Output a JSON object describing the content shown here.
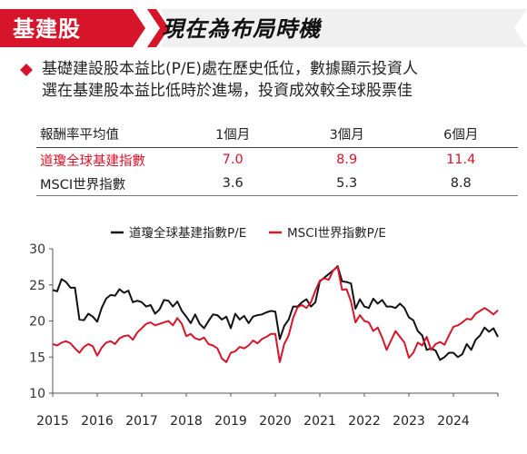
{
  "header": {
    "tag": "基建股",
    "title": "現在為布局時機"
  },
  "summary": {
    "line1": "基礎建設股本益比(P/E)處在歷史低位，數據顯示投資人",
    "line2": "選在基建股本益比低時於進場，投資成效較全球股票佳"
  },
  "table": {
    "headers": [
      "報酬率平均值",
      "1個月",
      "3個月",
      "6個月"
    ],
    "rows": [
      {
        "name": "道瓊全球基建指數",
        "values": [
          "7.0",
          "8.9",
          "11.4"
        ]
      },
      {
        "name": "MSCI世界指數",
        "values": [
          "3.6",
          "5.3",
          "8.8"
        ]
      }
    ]
  },
  "colors": {
    "accent": "#d7152a",
    "black_series": "#111111",
    "red_series": "#d7152a"
  },
  "chart_data": {
    "type": "line",
    "title": "",
    "xlabel": "",
    "ylabel": "",
    "ylim": [
      10,
      30
    ],
    "yticks": [
      "10",
      "15",
      "20",
      "25",
      "30"
    ],
    "xlim": [
      2015,
      2025
    ],
    "xtick_labels": [
      "2015",
      "2016",
      "2017",
      "2018",
      "2019",
      "2020",
      "2021",
      "2022",
      "2023",
      "2024"
    ],
    "legend_position": "top-center",
    "grid": false,
    "series": [
      {
        "name": "道瓊全球基建指數P/E",
        "color": "#111111",
        "x": [
          2015.0,
          2015.1,
          2015.2,
          2015.3,
          2015.4,
          2015.5,
          2015.6,
          2015.7,
          2015.8,
          2015.9,
          2016.0,
          2016.1,
          2016.2,
          2016.3,
          2016.4,
          2016.5,
          2016.6,
          2016.7,
          2016.8,
          2016.9,
          2017.0,
          2017.1,
          2017.2,
          2017.3,
          2017.4,
          2017.5,
          2017.6,
          2017.7,
          2017.8,
          2017.9,
          2018.0,
          2018.1,
          2018.2,
          2018.3,
          2018.4,
          2018.5,
          2018.6,
          2018.7,
          2018.8,
          2018.9,
          2019.0,
          2019.1,
          2019.2,
          2019.3,
          2019.4,
          2019.5,
          2019.6,
          2019.7,
          2019.8,
          2019.9,
          2020.0,
          2020.1,
          2020.2,
          2020.3,
          2020.4,
          2020.5,
          2020.6,
          2020.7,
          2020.8,
          2020.9,
          2021.0,
          2021.1,
          2021.2,
          2021.3,
          2021.4,
          2021.5,
          2021.6,
          2021.7,
          2021.8,
          2021.9,
          2022.0,
          2022.1,
          2022.2,
          2022.3,
          2022.4,
          2022.5,
          2022.6,
          2022.7,
          2022.8,
          2022.9,
          2023.0,
          2023.1,
          2023.2,
          2023.3,
          2023.4,
          2023.5,
          2023.6,
          2023.7,
          2023.8,
          2023.9,
          2024.0,
          2024.1,
          2024.2,
          2024.3,
          2024.4,
          2024.5,
          2024.6,
          2024.7,
          2024.8,
          2024.9,
          2025.0
        ],
        "values": [
          24.3,
          24.1,
          25.8,
          25.4,
          24.6,
          24.6,
          20.2,
          20.1,
          21.0,
          20.6,
          19.9,
          21.8,
          23.1,
          23.6,
          23.5,
          24.4,
          23.9,
          24.2,
          22.6,
          22.8,
          22.6,
          22.0,
          22.2,
          21.0,
          21.6,
          22.9,
          22.8,
          22.0,
          22.7,
          21.4,
          20.6,
          19.7,
          20.9,
          19.6,
          19.0,
          20.0,
          20.9,
          20.8,
          20.2,
          20.6,
          19.0,
          21.0,
          20.2,
          20.7,
          19.7,
          20.6,
          20.8,
          20.9,
          21.2,
          21.4,
          21.3,
          17.5,
          19.3,
          20.2,
          22.0,
          22.0,
          22.6,
          23.0,
          22.0,
          22.6,
          25.5,
          26.0,
          26.5,
          27.0,
          27.6,
          25.5,
          25.4,
          25.2,
          21.7,
          23.0,
          22.0,
          21.8,
          23.1,
          22.4,
          22.9,
          22.0,
          22.0,
          21.8,
          22.4,
          21.8,
          20.5,
          20.1,
          18.6,
          18.0,
          16.0,
          16.2,
          15.9,
          14.6,
          15.0,
          15.6,
          15.6,
          15.0,
          15.4,
          16.8,
          16.0,
          17.4,
          18.0,
          19.1,
          18.5,
          19.0,
          17.8
        ]
      },
      {
        "name": "MSCI世界指數P/E",
        "color": "#d7152a",
        "x": [
          2015.0,
          2015.1,
          2015.2,
          2015.3,
          2015.4,
          2015.5,
          2015.6,
          2015.7,
          2015.8,
          2015.9,
          2016.0,
          2016.1,
          2016.2,
          2016.3,
          2016.4,
          2016.5,
          2016.6,
          2016.7,
          2016.8,
          2016.9,
          2017.0,
          2017.1,
          2017.2,
          2017.3,
          2017.4,
          2017.5,
          2017.6,
          2017.7,
          2017.8,
          2017.9,
          2018.0,
          2018.1,
          2018.2,
          2018.3,
          2018.4,
          2018.5,
          2018.6,
          2018.7,
          2018.8,
          2018.9,
          2019.0,
          2019.1,
          2019.2,
          2019.3,
          2019.4,
          2019.5,
          2019.6,
          2019.7,
          2019.8,
          2019.9,
          2020.0,
          2020.1,
          2020.2,
          2020.3,
          2020.4,
          2020.5,
          2020.6,
          2020.7,
          2020.8,
          2020.9,
          2021.0,
          2021.1,
          2021.2,
          2021.3,
          2021.4,
          2021.5,
          2021.6,
          2021.7,
          2021.8,
          2021.9,
          2022.0,
          2022.1,
          2022.2,
          2022.3,
          2022.4,
          2022.5,
          2022.6,
          2022.7,
          2022.8,
          2022.9,
          2023.0,
          2023.1,
          2023.2,
          2023.3,
          2023.4,
          2023.5,
          2023.6,
          2023.7,
          2023.8,
          2023.9,
          2024.0,
          2024.1,
          2024.2,
          2024.3,
          2024.4,
          2024.5,
          2024.6,
          2024.7,
          2024.8,
          2024.9,
          2025.0
        ],
        "values": [
          16.8,
          16.6,
          17.0,
          17.2,
          16.9,
          16.2,
          15.6,
          16.4,
          16.8,
          16.5,
          15.2,
          16.3,
          17.0,
          17.2,
          16.8,
          17.6,
          17.9,
          18.0,
          17.4,
          18.4,
          19.0,
          19.6,
          19.8,
          19.4,
          19.6,
          19.8,
          20.0,
          19.4,
          20.4,
          19.6,
          17.9,
          18.2,
          17.6,
          17.4,
          17.7,
          16.8,
          16.6,
          16.2,
          14.8,
          14.3,
          15.6,
          15.8,
          16.4,
          16.2,
          16.6,
          17.3,
          16.9,
          17.5,
          17.8,
          18.2,
          18.2,
          14.3,
          16.8,
          18.0,
          20.4,
          21.9,
          22.2,
          21.8,
          22.6,
          24.2,
          25.6,
          25.9,
          25.7,
          27.0,
          27.5,
          24.3,
          24.4,
          22.7,
          19.8,
          20.8,
          20.0,
          19.8,
          18.6,
          19.1,
          17.7,
          16.0,
          17.3,
          18.6,
          17.8,
          17.0,
          14.9,
          15.6,
          17.0,
          16.6,
          17.8,
          16.0,
          16.8,
          17.1,
          16.7,
          18.0,
          19.2,
          19.4,
          19.8,
          20.3,
          20.2,
          21.0,
          21.4,
          21.8,
          21.4,
          20.9,
          21.5
        ]
      }
    ]
  }
}
